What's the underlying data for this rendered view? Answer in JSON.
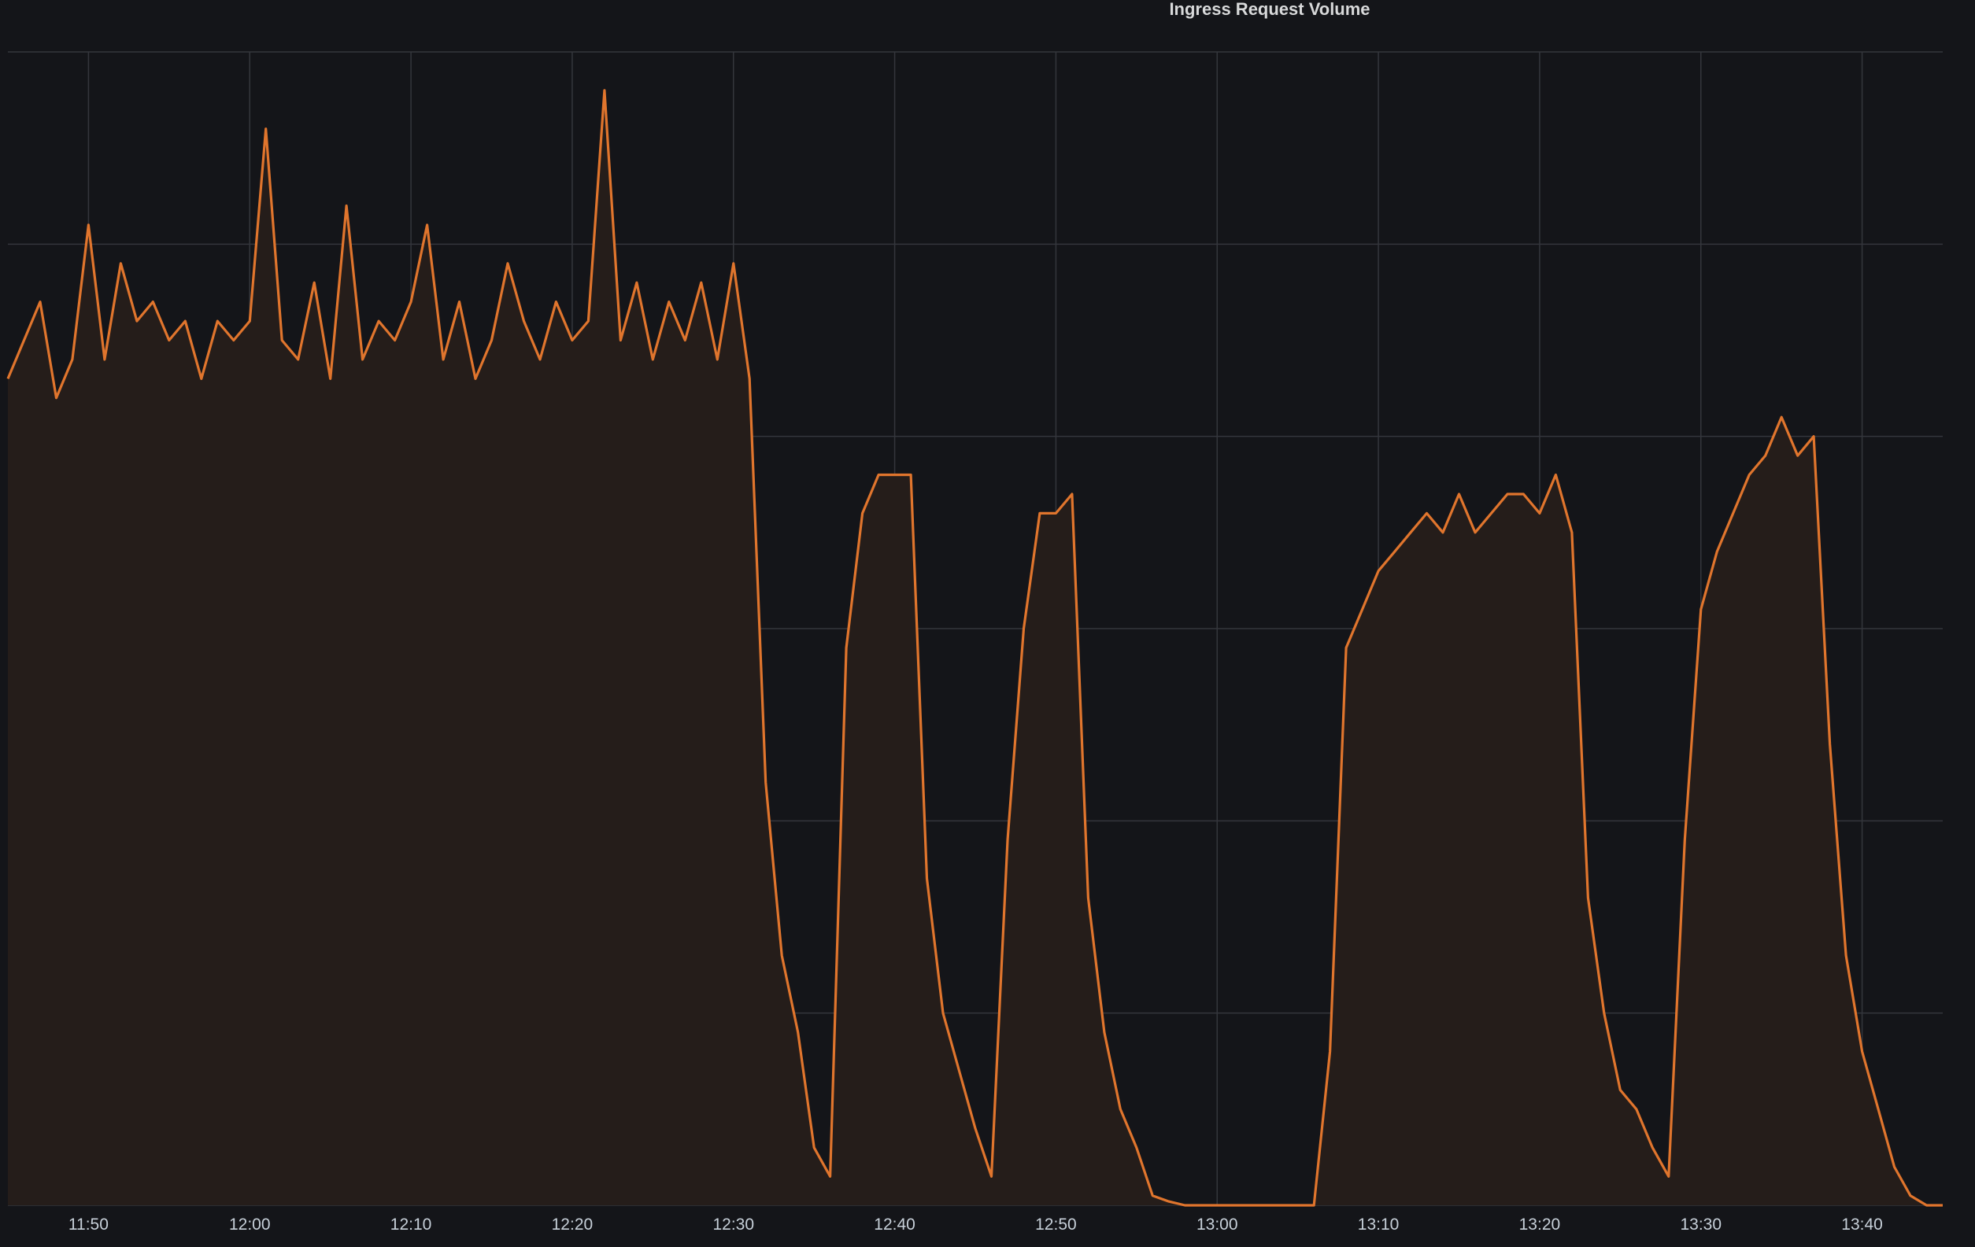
{
  "chart_data": {
    "type": "area",
    "title": "Ingress Request Volume",
    "xlabel": "",
    "ylabel": "",
    "x_unit": "time (HH:MM)",
    "xlim": [
      "11:45",
      "13:45"
    ],
    "ylim": [
      0,
      6
    ],
    "y_ticks_printed": false,
    "grid": true,
    "legend": "none",
    "x_ticks": [
      "11:50",
      "12:00",
      "12:10",
      "12:20",
      "12:30",
      "12:40",
      "12:50",
      "13:00",
      "13:10",
      "13:20",
      "13:30",
      "13:40"
    ],
    "series": [
      {
        "color": "#e0752d",
        "fill": "#251d1a",
        "points": [
          [
            "11:45",
            4.3
          ],
          [
            "11:46",
            4.5
          ],
          [
            "11:47",
            4.7
          ],
          [
            "11:48",
            4.2
          ],
          [
            "11:49",
            4.4
          ],
          [
            "11:50",
            5.1
          ],
          [
            "11:51",
            4.4
          ],
          [
            "11:52",
            4.9
          ],
          [
            "11:53",
            4.6
          ],
          [
            "11:54",
            4.7
          ],
          [
            "11:55",
            4.5
          ],
          [
            "11:56",
            4.6
          ],
          [
            "11:57",
            4.3
          ],
          [
            "11:58",
            4.6
          ],
          [
            "11:59",
            4.5
          ],
          [
            "12:00",
            4.6
          ],
          [
            "12:01",
            5.6
          ],
          [
            "12:02",
            4.5
          ],
          [
            "12:03",
            4.4
          ],
          [
            "12:04",
            4.8
          ],
          [
            "12:05",
            4.3
          ],
          [
            "12:06",
            5.2
          ],
          [
            "12:07",
            4.4
          ],
          [
            "12:08",
            4.6
          ],
          [
            "12:09",
            4.5
          ],
          [
            "12:10",
            4.7
          ],
          [
            "12:11",
            5.1
          ],
          [
            "12:12",
            4.4
          ],
          [
            "12:13",
            4.7
          ],
          [
            "12:14",
            4.3
          ],
          [
            "12:15",
            4.5
          ],
          [
            "12:16",
            4.9
          ],
          [
            "12:17",
            4.6
          ],
          [
            "12:18",
            4.4
          ],
          [
            "12:19",
            4.7
          ],
          [
            "12:20",
            4.5
          ],
          [
            "12:21",
            4.6
          ],
          [
            "12:22",
            5.8
          ],
          [
            "12:23",
            4.5
          ],
          [
            "12:24",
            4.8
          ],
          [
            "12:25",
            4.4
          ],
          [
            "12:26",
            4.7
          ],
          [
            "12:27",
            4.5
          ],
          [
            "12:28",
            4.8
          ],
          [
            "12:29",
            4.4
          ],
          [
            "12:30",
            4.9
          ],
          [
            "12:31",
            4.3
          ],
          [
            "12:32",
            2.2
          ],
          [
            "12:33",
            1.3
          ],
          [
            "12:34",
            0.9
          ],
          [
            "12:35",
            0.3
          ],
          [
            "12:36",
            0.15
          ],
          [
            "12:37",
            2.9
          ],
          [
            "12:38",
            3.6
          ],
          [
            "12:39",
            3.8
          ],
          [
            "12:40",
            3.8
          ],
          [
            "12:41",
            3.8
          ],
          [
            "12:42",
            1.7
          ],
          [
            "12:43",
            1.0
          ],
          [
            "12:44",
            0.7
          ],
          [
            "12:45",
            0.4
          ],
          [
            "12:46",
            0.15
          ],
          [
            "12:47",
            1.9
          ],
          [
            "12:48",
            3.0
          ],
          [
            "12:49",
            3.6
          ],
          [
            "12:50",
            3.6
          ],
          [
            "12:51",
            3.7
          ],
          [
            "12:52",
            1.6
          ],
          [
            "12:53",
            0.9
          ],
          [
            "12:54",
            0.5
          ],
          [
            "12:55",
            0.3
          ],
          [
            "12:56",
            0.05
          ],
          [
            "12:57",
            0.02
          ],
          [
            "12:58",
            0.0
          ],
          [
            "13:00",
            0.0
          ],
          [
            "13:06",
            0.0
          ],
          [
            "13:07",
            0.8
          ],
          [
            "13:08",
            2.9
          ],
          [
            "13:09",
            3.1
          ],
          [
            "13:10",
            3.3
          ],
          [
            "13:11",
            3.4
          ],
          [
            "13:12",
            3.5
          ],
          [
            "13:13",
            3.6
          ],
          [
            "13:14",
            3.5
          ],
          [
            "13:15",
            3.7
          ],
          [
            "13:16",
            3.5
          ],
          [
            "13:17",
            3.6
          ],
          [
            "13:18",
            3.7
          ],
          [
            "13:19",
            3.7
          ],
          [
            "13:20",
            3.6
          ],
          [
            "13:21",
            3.8
          ],
          [
            "13:22",
            3.5
          ],
          [
            "13:23",
            1.6
          ],
          [
            "13:24",
            1.0
          ],
          [
            "13:25",
            0.6
          ],
          [
            "13:26",
            0.5
          ],
          [
            "13:27",
            0.3
          ],
          [
            "13:28",
            0.15
          ],
          [
            "13:29",
            1.9
          ],
          [
            "13:30",
            3.1
          ],
          [
            "13:31",
            3.4
          ],
          [
            "13:32",
            3.6
          ],
          [
            "13:33",
            3.8
          ],
          [
            "13:34",
            3.9
          ],
          [
            "13:35",
            4.1
          ],
          [
            "13:36",
            3.9
          ],
          [
            "13:37",
            4.0
          ],
          [
            "13:38",
            2.4
          ],
          [
            "13:39",
            1.3
          ],
          [
            "13:40",
            0.8
          ],
          [
            "13:41",
            0.5
          ],
          [
            "13:42",
            0.2
          ],
          [
            "13:43",
            0.05
          ],
          [
            "13:44",
            0.0
          ],
          [
            "13:45",
            0.0
          ]
        ]
      }
    ]
  }
}
